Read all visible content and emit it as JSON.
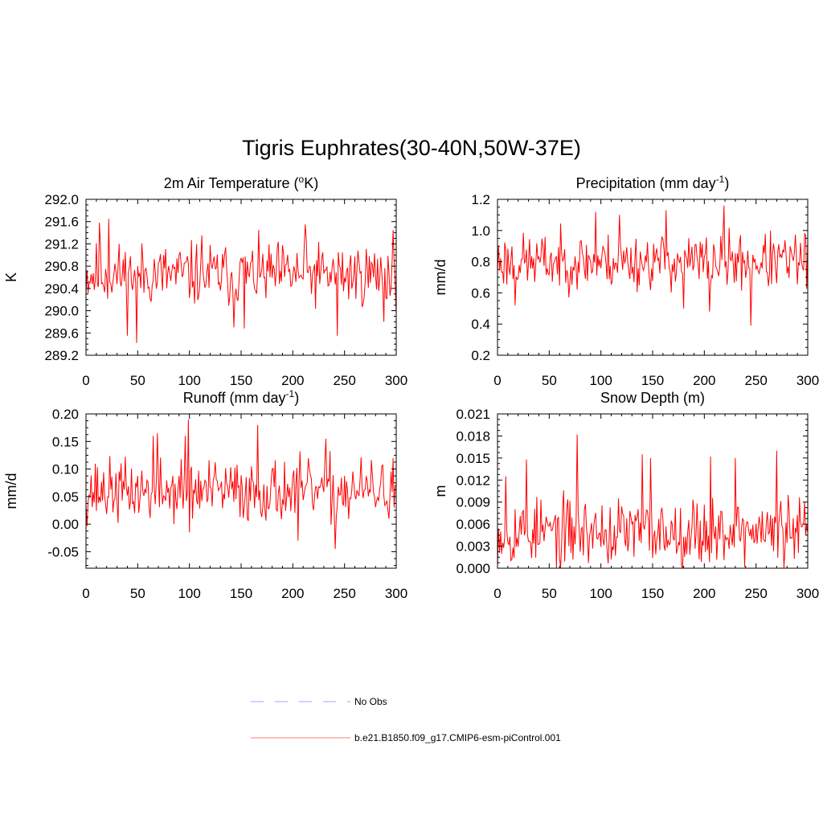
{
  "figure": {
    "title": "Tigris Euphrates(30-40N,50W-37E)"
  },
  "colors": {
    "model": "#ff0000",
    "obs": "#b3b3ff",
    "axis": "#000000"
  },
  "legend": {
    "items": [
      {
        "label": "No Obs",
        "style": "dashed",
        "color": "#b3b3ff"
      },
      {
        "label": "b.e21.B1850.f09_g17.CMIP6-esm-piControl.001",
        "style": "solid",
        "color": "#ff9999"
      }
    ]
  },
  "chart_data": [
    {
      "id": "t2m",
      "type": "line",
      "title_main": "2m Air Temperature (",
      "title_sup": "o",
      "title_post": "K)",
      "ylabel": "K",
      "xlim": [
        0,
        300
      ],
      "ylim": [
        289.2,
        292.0
      ],
      "xticks": [
        0,
        50,
        100,
        150,
        200,
        250,
        300
      ],
      "yticks": [
        "289.2",
        "289.6",
        "290.0",
        "290.4",
        "290.8",
        "291.2",
        "291.6",
        "292.0"
      ],
      "series": [
        {
          "mean": 290.65,
          "amp": 0.35,
          "seed": 11,
          "spikes": [
            [
              13,
              291.58
            ],
            [
              22,
              291.65
            ],
            [
              40,
              289.55
            ],
            [
              49,
              289.42
            ],
            [
              112,
              291.35
            ],
            [
              143,
              289.7
            ],
            [
              153,
              289.68
            ],
            [
              212,
              291.55
            ],
            [
              243,
              289.55
            ],
            [
              297,
              291.45
            ],
            [
              288,
              289.8
            ]
          ]
        }
      ]
    },
    {
      "id": "precip",
      "type": "line",
      "title_main": "Precipitation (mm day",
      "title_sup": "-1",
      "title_post": ")",
      "ylabel": "mm/d",
      "xlim": [
        0,
        300
      ],
      "ylim": [
        0.2,
        1.2
      ],
      "xticks": [
        0,
        50,
        100,
        150,
        200,
        250,
        300
      ],
      "yticks": [
        "0.2",
        "0.4",
        "0.6",
        "0.8",
        "1.0",
        "1.2"
      ],
      "series": [
        {
          "mean": 0.8,
          "amp": 0.11,
          "seed": 23,
          "spikes": [
            [
              17,
              0.52
            ],
            [
              95,
              1.12
            ],
            [
              118,
              1.1
            ],
            [
              163,
              1.13
            ],
            [
              205,
              0.48
            ],
            [
              219,
              1.16
            ],
            [
              245,
              0.39
            ],
            [
              297,
              0.98
            ],
            [
              180,
              0.5
            ]
          ]
        }
      ]
    },
    {
      "id": "runoff",
      "type": "line",
      "title_main": "Runoff (mm day",
      "title_sup": "-1",
      "title_post": ")",
      "ylabel": "mm/d",
      "xlim": [
        0,
        300
      ],
      "ylim": [
        -0.08,
        0.2
      ],
      "xticks": [
        0,
        50,
        100,
        150,
        200,
        250,
        300
      ],
      "yticks": [
        "-0.05",
        "0.00",
        "0.05",
        "0.10",
        "0.15",
        "0.20"
      ],
      "series": [
        {
          "mean": 0.06,
          "amp": 0.035,
          "seed": 37,
          "spikes": [
            [
              65,
              0.16
            ],
            [
              69,
              0.165
            ],
            [
              96,
              0.16
            ],
            [
              99,
              0.19
            ],
            [
              166,
              0.18
            ],
            [
              100,
              -0.015
            ],
            [
              205,
              -0.03
            ],
            [
              241,
              -0.045
            ],
            [
              232,
              0.155
            ],
            [
              297,
              0.12
            ]
          ]
        }
      ]
    },
    {
      "id": "snow",
      "type": "line",
      "title_main": "Snow Depth (m)",
      "title_sup": "",
      "title_post": "",
      "ylabel": "m",
      "xlim": [
        0,
        300
      ],
      "ylim": [
        0.0,
        0.021
      ],
      "xticks": [
        0,
        50,
        100,
        150,
        200,
        250,
        300
      ],
      "yticks": [
        "0.000",
        "0.003",
        "0.006",
        "0.009",
        "0.012",
        "0.015",
        "0.018",
        "0.021"
      ],
      "series": [
        {
          "mean": 0.005,
          "amp": 0.0028,
          "seed": 53,
          "spikes": [
            [
              8,
              0.0125
            ],
            [
              77,
              0.0182
            ],
            [
              28,
              0.0148
            ],
            [
              140,
              0.0155
            ],
            [
              148,
              0.015
            ],
            [
              206,
              0.0152
            ],
            [
              230,
              0.015
            ],
            [
              270,
              0.016
            ],
            [
              60,
              0.0014
            ],
            [
              110,
              0.0012
            ],
            [
              195,
              0.0012
            ]
          ]
        }
      ]
    }
  ]
}
